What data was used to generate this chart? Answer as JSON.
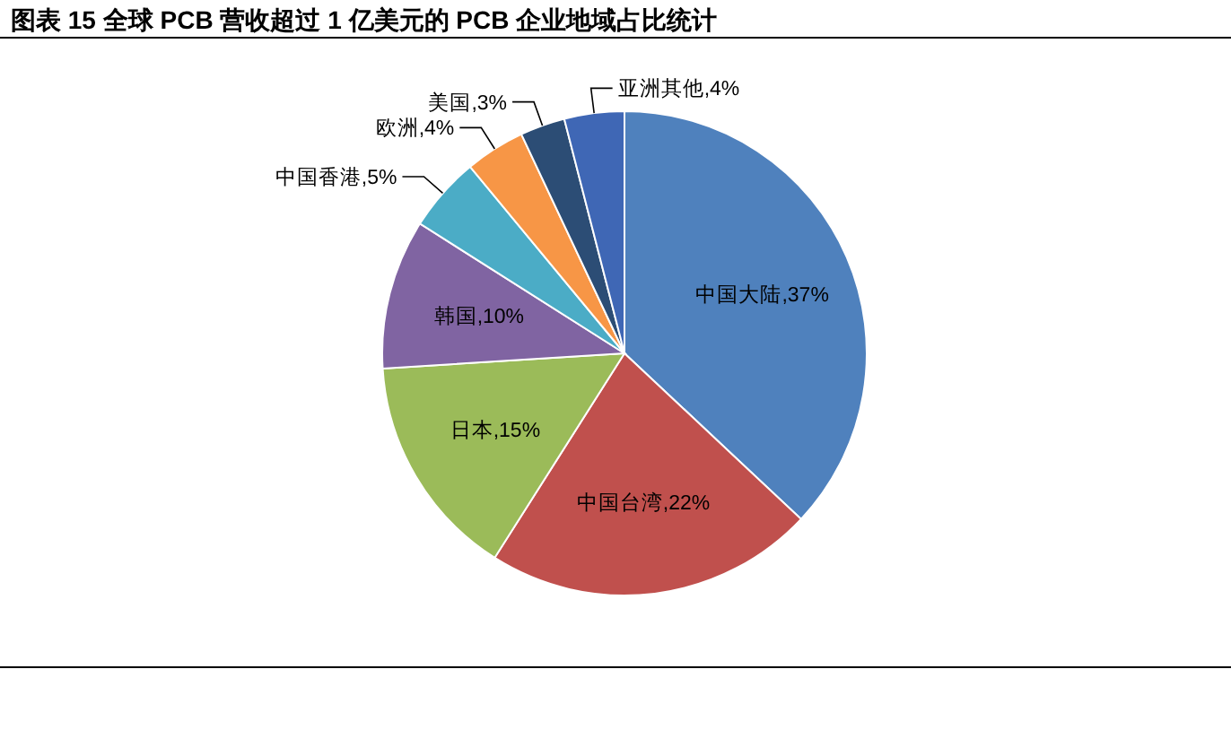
{
  "chart_data": {
    "type": "pie",
    "title": "图表 15 全球 PCB 营收超过 1 亿美元的 PCB 企业地域占比统计",
    "categories": [
      "中国大陆",
      "中国台湾",
      "日本",
      "韩国",
      "中国香港",
      "欧洲",
      "美国",
      "亚洲其他"
    ],
    "values": [
      37,
      22,
      15,
      10,
      5,
      4,
      3,
      4
    ],
    "value_labels": [
      "37%",
      "22%",
      "15%",
      "10%",
      "5%",
      "4%",
      "3%",
      "4%"
    ],
    "colors": [
      "#4f81bd",
      "#c0504d",
      "#9bbb59",
      "#8064a2",
      "#4bacc6",
      "#f79646",
      "#2c4d75",
      "#3f67b5"
    ]
  }
}
